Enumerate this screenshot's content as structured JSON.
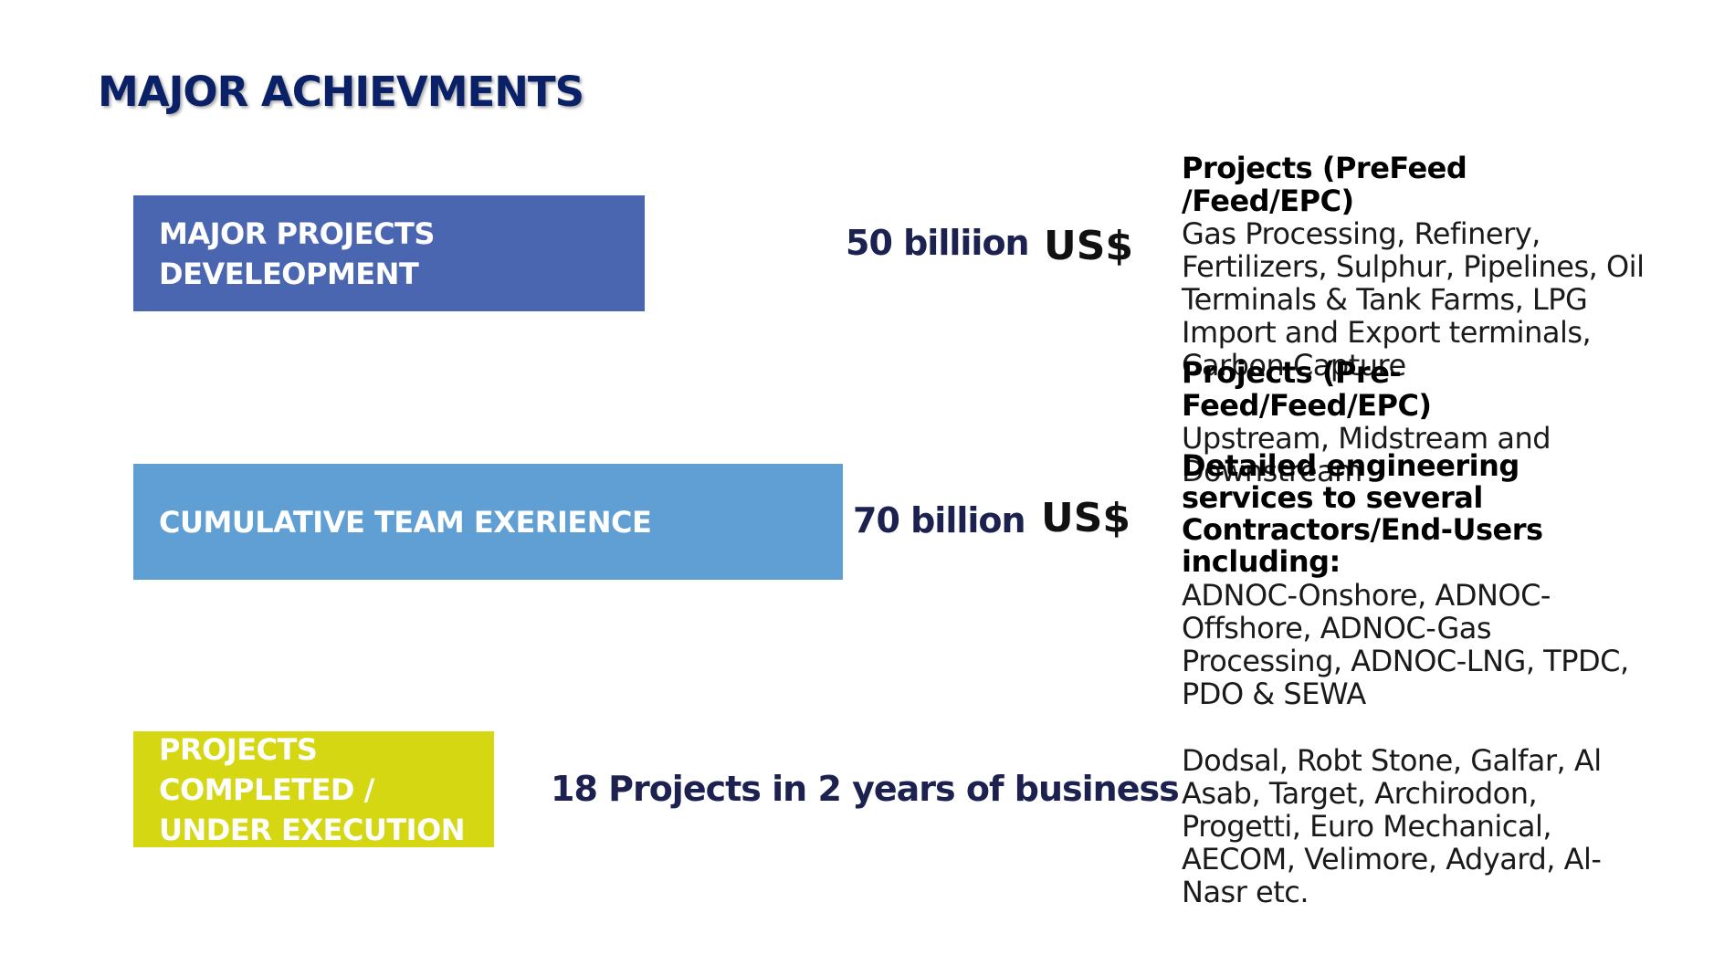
{
  "title": "MAJOR ACHIEVMENTS",
  "rows": [
    {
      "label": "MAJOR PROJECTS\nDEVELEOPMENT",
      "value": "50 billiion",
      "currency": "US$",
      "color": "#4b66b0"
    },
    {
      "label": "CUMULATIVE TEAM EXERIENCE",
      "value": "70 billion",
      "currency": "US$",
      "color": "#609fd3"
    },
    {
      "label": "PROJECTS\nCOMPLETED /\nUNDER EXECUTION",
      "value": "18 Projects in 2 years of business",
      "color": "#d4d712"
    }
  ],
  "descriptions": {
    "block1_heading": "Projects  (PreFeed /Feed/EPC)",
    "block1_text": "Gas Processing, Refinery, Fertilizers, Sulphur, Pipelines, Oil Terminals & Tank Farms, LPG Import and Export terminals, Carbon Capture",
    "block2_heading": "Projects  (Pre-Feed/Feed/EPC)",
    "block2_text": "Upstream, Midstream and Downstream",
    "block3_heading": "Detailed engineering services to several Contractors/End-Users including:",
    "block3_text": "ADNOC-Onshore, ADNOC-Offshore, ADNOC-Gas Processing, ADNOC-LNG, TPDC, PDO & SEWA",
    "block4_text": "Dodsal, Robt Stone, Galfar, Al Asab, Target, Archirodon, Progetti, Euro Mechanical, AECOM, Velimore, Adyard, Al-Nasr etc."
  }
}
